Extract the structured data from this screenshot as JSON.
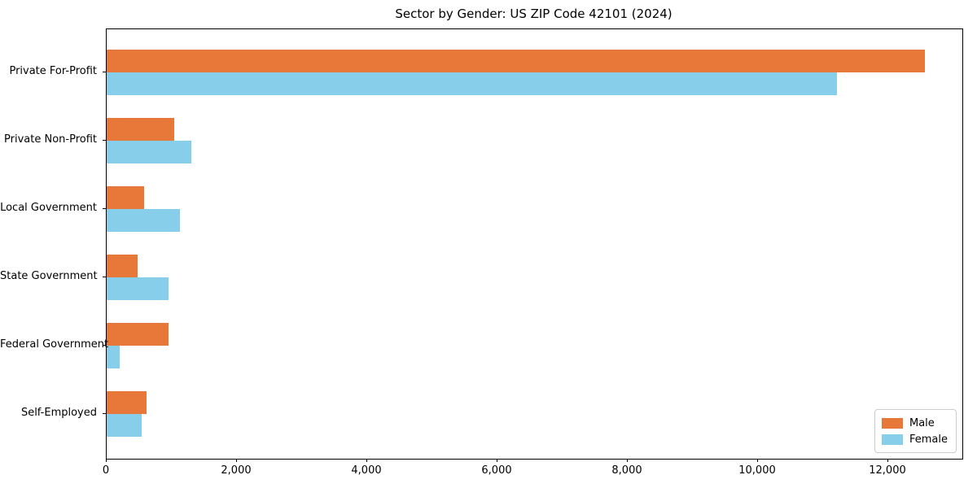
{
  "title": "Sector by Gender: US ZIP Code 42101 (2024)",
  "chart_data": {
    "type": "bar",
    "orientation": "horizontal",
    "title": "Sector by Gender: US ZIP Code 42101 (2024)",
    "xlabel": "",
    "ylabel": "",
    "categories": [
      "Private For-Profit",
      "Private Non-Profit",
      "Local Government",
      "State Government",
      "Federal Government",
      "Self-Employed"
    ],
    "series": [
      {
        "name": "Male",
        "color": "#e8773a",
        "values": [
          12560,
          1040,
          575,
          475,
          950,
          610
        ]
      },
      {
        "name": "Female",
        "color": "#87ceeb",
        "values": [
          11220,
          1300,
          1125,
          950,
          200,
          540
        ]
      }
    ],
    "xlim": [
      0,
      13140
    ],
    "x_ticks": [
      0,
      2000,
      4000,
      6000,
      8000,
      10000,
      12000
    ],
    "x_tick_labels": [
      "0",
      "2,000",
      "4,000",
      "6,000",
      "8,000",
      "10,000",
      "12,000"
    ],
    "grid": false,
    "legend_position": "lower right"
  },
  "legend": {
    "items": [
      {
        "label": "Male",
        "color": "#e8773a"
      },
      {
        "label": "Female",
        "color": "#87ceeb"
      }
    ]
  }
}
